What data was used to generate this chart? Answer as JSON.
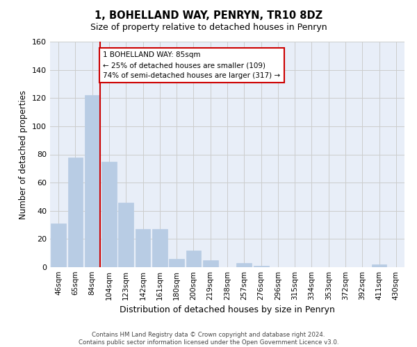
{
  "title": "1, BOHELLAND WAY, PENRYN, TR10 8DZ",
  "subtitle": "Size of property relative to detached houses in Penryn",
  "xlabel": "Distribution of detached houses by size in Penryn",
  "ylabel": "Number of detached properties",
  "footer_line1": "Contains HM Land Registry data © Crown copyright and database right 2024.",
  "footer_line2": "Contains public sector information licensed under the Open Government Licence v3.0.",
  "bar_labels": [
    "46sqm",
    "65sqm",
    "84sqm",
    "104sqm",
    "123sqm",
    "142sqm",
    "161sqm",
    "180sqm",
    "200sqm",
    "219sqm",
    "238sqm",
    "257sqm",
    "276sqm",
    "296sqm",
    "315sqm",
    "334sqm",
    "353sqm",
    "372sqm",
    "392sqm",
    "411sqm",
    "430sqm"
  ],
  "bar_values": [
    31,
    78,
    122,
    75,
    46,
    27,
    27,
    6,
    12,
    5,
    0,
    3,
    1,
    0,
    0,
    0,
    0,
    0,
    0,
    2,
    0
  ],
  "bar_color": "#b8cce4",
  "bar_edge_color": "#b8cce4",
  "grid_color": "#cccccc",
  "background_color": "#e8eef8",
  "annotation_line1": "1 BOHELLAND WAY: 85sqm",
  "annotation_line2": "← 25% of detached houses are smaller (109)",
  "annotation_line3": "74% of semi-detached houses are larger (317) →",
  "annotation_box_edge": "#cc0000",
  "vline_color": "#cc0000",
  "vline_x_index": 2,
  "ylim": [
    0,
    160
  ],
  "yticks": [
    0,
    20,
    40,
    60,
    80,
    100,
    120,
    140,
    160
  ]
}
